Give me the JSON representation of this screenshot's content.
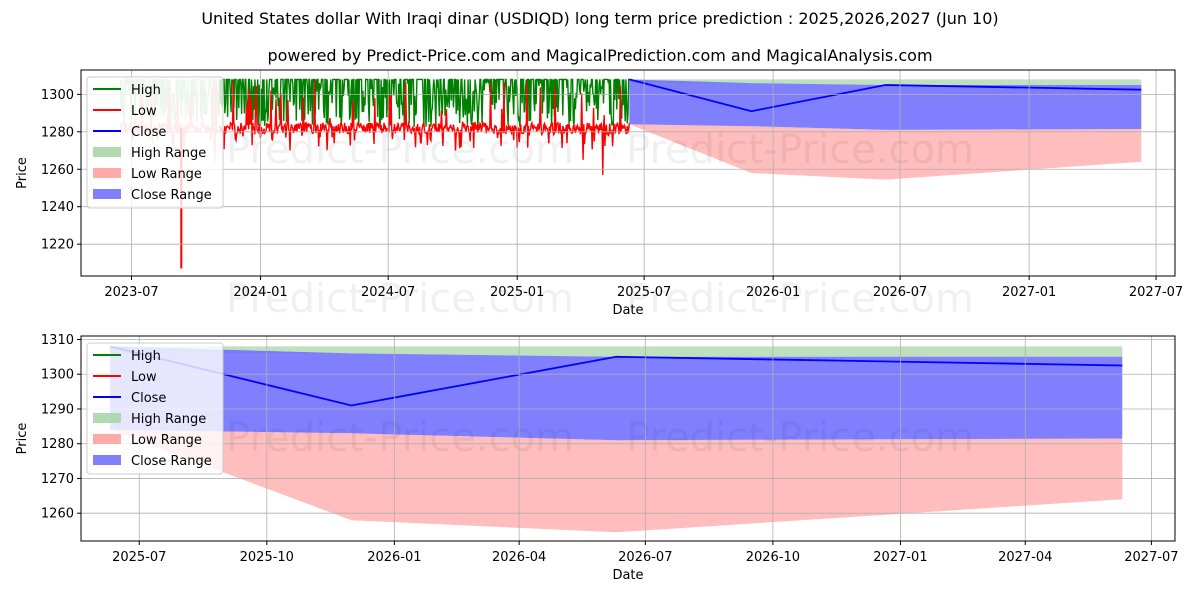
{
  "header": {
    "title": "United States dollar With Iraqi dinar (USDIQD) long term price prediction : 2025,2026,2027 (Jun 10)",
    "subtitle": "powered by Predict-Price.com and MagicalPrediction.com and MagicalAnalysis.com"
  },
  "watermark": "Predict-Price.com",
  "colors": {
    "high": "#008000",
    "low": "#ff0000",
    "close": "#0000ff",
    "high_range": "#a3d3a3",
    "low_range": "#ff9a9a",
    "close_range": "#6a6aff"
  },
  "chart_data": [
    {
      "type": "line",
      "xlabel": "Date",
      "ylabel": "Price",
      "xlim": [
        "2023-04-20",
        "2027-07-28"
      ],
      "ylim": [
        1203,
        1313
      ],
      "yticks": [
        1220,
        1240,
        1260,
        1280,
        1300
      ],
      "xticks": [
        "2023-07",
        "2024-01",
        "2024-07",
        "2025-01",
        "2025-07",
        "2026-01",
        "2026-07",
        "2027-01",
        "2027-07"
      ],
      "grid": true,
      "legend": {
        "placement": "top-left",
        "entries": [
          "High",
          "Low",
          "Close",
          "High Range",
          "Low Range",
          "Close Range"
        ]
      },
      "history": {
        "start": "2023-06-15",
        "end": "2025-06-10",
        "high_typical": 1308,
        "low_typical": 1282,
        "low_spikes": [
          {
            "x": "2023-09-10",
            "y": 1207
          },
          {
            "x": "2023-10-28",
            "y": 1264
          },
          {
            "x": "2024-02-12",
            "y": 1270
          },
          {
            "x": "2024-10-05",
            "y": 1270
          },
          {
            "x": "2025-04-05",
            "y": 1265
          },
          {
            "x": "2025-05-03",
            "y": 1257
          }
        ]
      },
      "series": [
        {
          "name": "Close",
          "x": [
            "2025-06-10",
            "2025-12-01",
            "2026-06-10",
            "2027-06-10"
          ],
          "values": [
            1308,
            1291,
            1305,
            1302.5
          ]
        }
      ],
      "ranges": [
        {
          "name": "High Range",
          "x": [
            "2025-06-10",
            "2025-12-01",
            "2026-06-10",
            "2027-06-10"
          ],
          "upper": [
            1308,
            1308,
            1308,
            1308
          ],
          "lower": [
            1306,
            1306,
            1305,
            1305
          ]
        },
        {
          "name": "Low Range",
          "x": [
            "2025-06-10",
            "2025-12-01",
            "2026-06-10",
            "2027-06-10"
          ],
          "upper": [
            1284,
            1283,
            1281,
            1281.5
          ],
          "lower": [
            1284,
            1258,
            1254.5,
            1264
          ]
        },
        {
          "name": "Close Range",
          "x": [
            "2025-06-10",
            "2025-12-01",
            "2026-06-10",
            "2027-06-10"
          ],
          "upper": [
            1308,
            1306,
            1305,
            1305
          ],
          "lower": [
            1284,
            1283,
            1281,
            1281.5
          ]
        }
      ]
    },
    {
      "type": "line",
      "xlabel": "Date",
      "ylabel": "Price",
      "xlim": [
        "2025-05-20",
        "2027-07-18"
      ],
      "ylim": [
        1252,
        1311
      ],
      "yticks": [
        1260,
        1270,
        1280,
        1290,
        1300,
        1310
      ],
      "xticks": [
        "2025-07",
        "2025-10",
        "2026-01",
        "2026-04",
        "2026-07",
        "2026-10",
        "2027-01",
        "2027-04",
        "2027-07"
      ],
      "grid": true,
      "legend": {
        "placement": "top-left",
        "entries": [
          "High",
          "Low",
          "Close",
          "High Range",
          "Low Range",
          "Close Range"
        ]
      },
      "series": [
        {
          "name": "Close",
          "x": [
            "2025-06-10",
            "2025-12-01",
            "2026-06-10",
            "2027-06-10"
          ],
          "values": [
            1308,
            1291,
            1305,
            1302.5
          ]
        }
      ],
      "ranges": [
        {
          "name": "High Range",
          "x": [
            "2025-06-10",
            "2025-12-01",
            "2026-06-10",
            "2027-06-10"
          ],
          "upper": [
            1308,
            1308,
            1308,
            1308
          ],
          "lower": [
            1306,
            1306,
            1305,
            1305
          ]
        },
        {
          "name": "Low Range",
          "x": [
            "2025-06-10",
            "2025-12-01",
            "2026-06-10",
            "2027-06-10"
          ],
          "upper": [
            1284,
            1283,
            1281,
            1281.5
          ],
          "lower": [
            1284,
            1258,
            1254.5,
            1264
          ]
        },
        {
          "name": "Close Range",
          "x": [
            "2025-06-10",
            "2025-12-01",
            "2026-06-10",
            "2027-06-10"
          ],
          "upper": [
            1308,
            1306,
            1305,
            1305
          ],
          "lower": [
            1284,
            1283,
            1281,
            1281.5
          ]
        }
      ]
    }
  ]
}
